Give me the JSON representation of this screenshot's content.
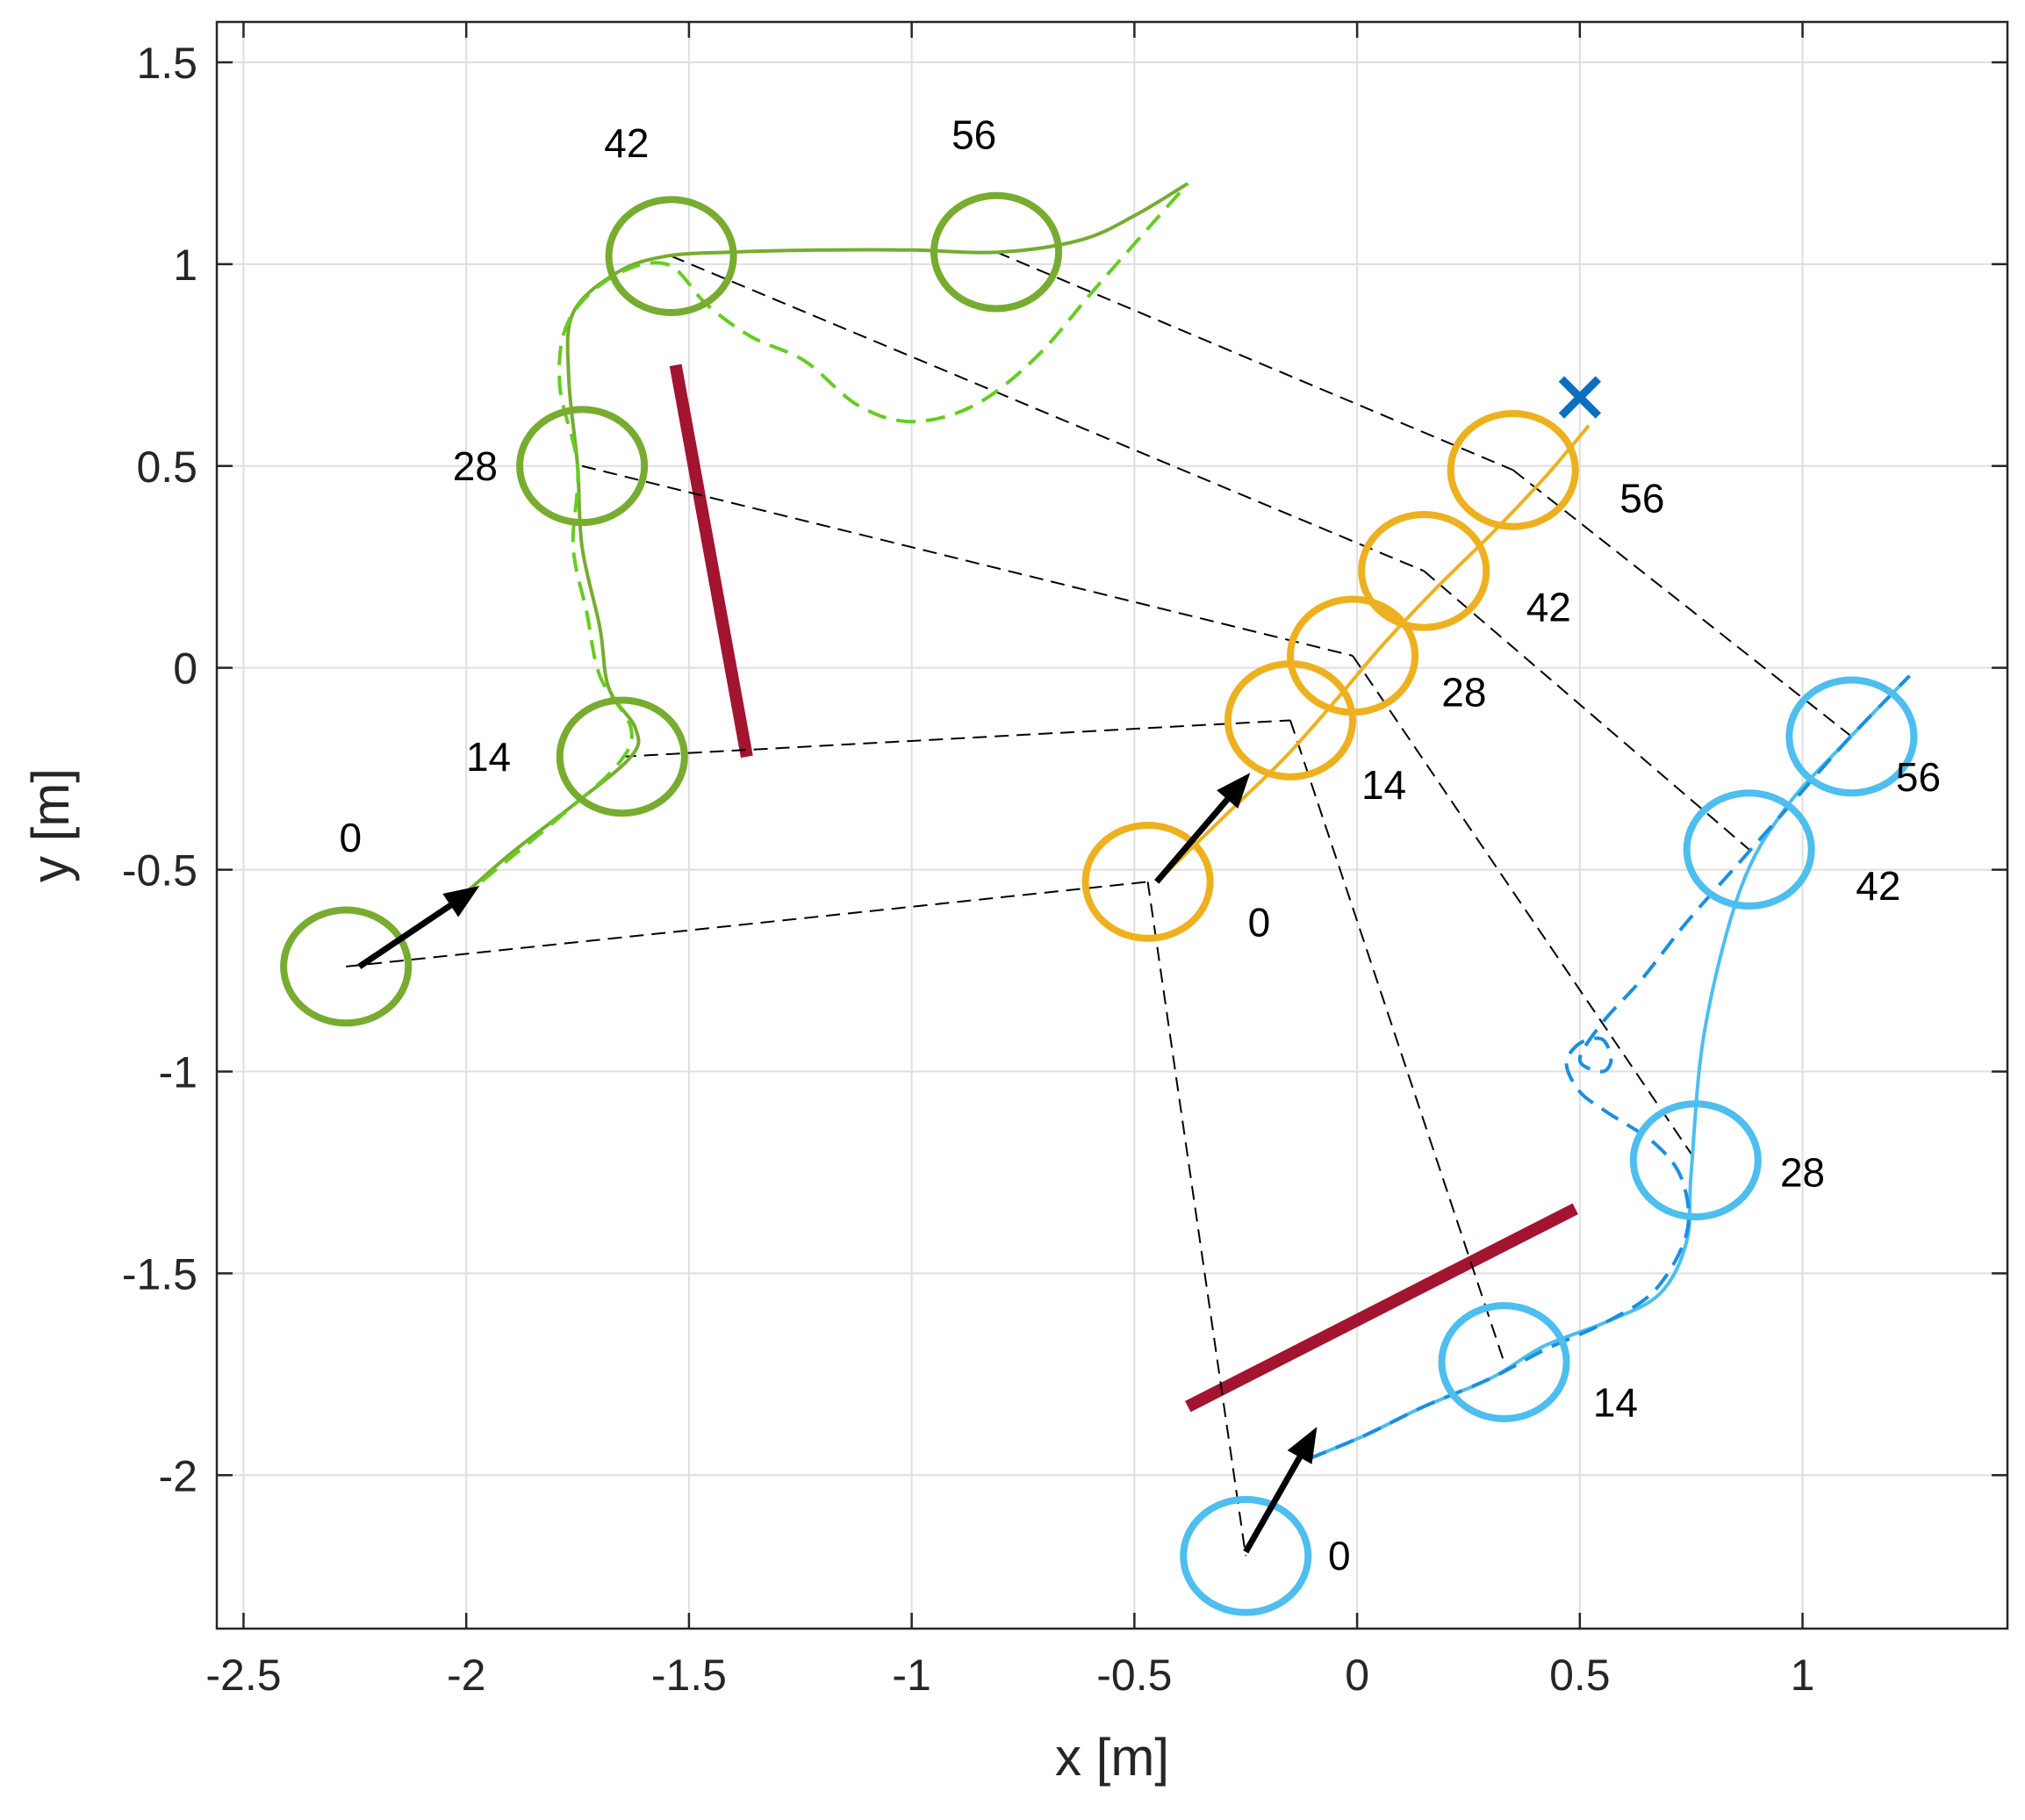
{
  "chart_data": {
    "type": "line",
    "title": "",
    "xlabel": "x [m]",
    "ylabel": "y [m]",
    "xlim": [
      -2.56,
      1.46
    ],
    "ylim": [
      -2.38,
      1.6
    ],
    "grid": true,
    "xticks": [
      -2.5,
      -2,
      -1.5,
      -1,
      -0.5,
      0,
      0.5,
      1
    ],
    "yticks": [
      -2,
      -1.5,
      -1,
      -0.5,
      0,
      0.5,
      1,
      1.5
    ],
    "xtick_labels": [
      "-2.5",
      "-2",
      "-1.5",
      "-1",
      "-0.5",
      "0",
      "0.5",
      "1"
    ],
    "ytick_labels": [
      "-2",
      "-1.5",
      "-1",
      "-0.5",
      "0",
      "0.5",
      "1",
      "1.5"
    ],
    "robot_radius": 0.14,
    "colors": {
      "green_robot": "#77ac30",
      "green_reference": "#66cc22",
      "orange_robot": "#edb120",
      "blue_robot": "#4dbeee",
      "blue_reference": "#1a8fe0",
      "obstacle": "#a2142f",
      "goal_marker": "#0b6fbf",
      "connector": "#000000",
      "arrow": "#000000"
    },
    "series": [
      {
        "name": "green robot trajectory",
        "color_key": "green_robot",
        "style": "solid",
        "points": [
          [
            -2.24,
            -0.74
          ],
          [
            -2.05,
            -0.6
          ],
          [
            -1.9,
            -0.46
          ],
          [
            -1.76,
            -0.34
          ],
          [
            -1.63,
            -0.22
          ],
          [
            -1.62,
            -0.15
          ],
          [
            -1.68,
            -0.05
          ],
          [
            -1.7,
            0.1
          ],
          [
            -1.74,
            0.3
          ],
          [
            -1.75,
            0.5
          ],
          [
            -1.77,
            0.72
          ],
          [
            -1.76,
            0.88
          ],
          [
            -1.66,
            0.98
          ],
          [
            -1.55,
            1.02
          ],
          [
            -1.4,
            1.03
          ],
          [
            -1.2,
            1.035
          ],
          [
            -1.0,
            1.035
          ],
          [
            -0.8,
            1.03
          ],
          [
            -0.62,
            1.06
          ],
          [
            -0.5,
            1.12
          ],
          [
            -0.38,
            1.2
          ]
        ]
      },
      {
        "name": "green reference path",
        "color_key": "green_reference",
        "style": "dashed",
        "points": [
          [
            -2.24,
            -0.74
          ],
          [
            -2.06,
            -0.61
          ],
          [
            -1.9,
            -0.47
          ],
          [
            -1.78,
            -0.36
          ],
          [
            -1.66,
            -0.24
          ],
          [
            -1.63,
            -0.15
          ],
          [
            -1.7,
            -0.02
          ],
          [
            -1.73,
            0.14
          ],
          [
            -1.76,
            0.3
          ],
          [
            -1.75,
            0.5
          ],
          [
            -1.79,
            0.7
          ],
          [
            -1.77,
            0.86
          ],
          [
            -1.67,
            0.97
          ],
          [
            -1.55,
            1.0
          ],
          [
            -1.46,
            0.9
          ],
          [
            -1.36,
            0.82
          ],
          [
            -1.24,
            0.76
          ],
          [
            -1.12,
            0.65
          ],
          [
            -1.0,
            0.61
          ],
          [
            -0.86,
            0.65
          ],
          [
            -0.72,
            0.77
          ],
          [
            -0.58,
            0.95
          ],
          [
            -0.38,
            1.2
          ]
        ]
      },
      {
        "name": "orange robot trajectory",
        "color_key": "orange_robot",
        "style": "solid",
        "points": [
          [
            -0.45,
            -0.53
          ],
          [
            -0.3,
            -0.37
          ],
          [
            -0.16,
            -0.22
          ],
          [
            -0.04,
            -0.07
          ],
          [
            0.06,
            0.06
          ],
          [
            0.18,
            0.2
          ],
          [
            0.3,
            0.33
          ],
          [
            0.42,
            0.47
          ],
          [
            0.52,
            0.6
          ]
        ]
      },
      {
        "name": "blue robot trajectory",
        "color_key": "blue_robot",
        "style": "solid",
        "points": [
          [
            -0.11,
            -1.96
          ],
          [
            0.02,
            -1.9
          ],
          [
            0.15,
            -1.83
          ],
          [
            0.3,
            -1.76
          ],
          [
            0.42,
            -1.68
          ],
          [
            0.56,
            -1.62
          ],
          [
            0.68,
            -1.55
          ],
          [
            0.74,
            -1.42
          ],
          [
            0.75,
            -1.25
          ],
          [
            0.78,
            -0.9
          ],
          [
            0.86,
            -0.55
          ],
          [
            0.96,
            -0.35
          ],
          [
            1.1,
            -0.18
          ],
          [
            1.24,
            -0.02
          ]
        ]
      },
      {
        "name": "blue reference path",
        "color_key": "blue_reference",
        "style": "dashed",
        "points": [
          [
            -0.11,
            -1.96
          ],
          [
            0.02,
            -1.9
          ],
          [
            0.15,
            -1.83
          ],
          [
            0.3,
            -1.76
          ],
          [
            0.42,
            -1.69
          ],
          [
            0.56,
            -1.62
          ],
          [
            0.67,
            -1.54
          ],
          [
            0.74,
            -1.4
          ],
          [
            0.73,
            -1.27
          ],
          [
            0.67,
            -1.18
          ],
          [
            0.56,
            -1.1
          ],
          [
            0.5,
            -1.05
          ],
          [
            0.47,
            -0.98
          ],
          [
            0.5,
            -0.93
          ],
          [
            0.55,
            -0.92
          ],
          [
            0.57,
            -0.97
          ],
          [
            0.55,
            -1.0
          ],
          [
            0.5,
            -0.97
          ],
          [
            0.55,
            -0.88
          ],
          [
            0.64,
            -0.77
          ],
          [
            0.74,
            -0.63
          ],
          [
            0.86,
            -0.48
          ],
          [
            0.98,
            -0.33
          ],
          [
            1.1,
            -0.18
          ],
          [
            1.24,
            -0.02
          ]
        ]
      }
    ],
    "robots": [
      {
        "name": "green",
        "color_key": "green_robot",
        "positions": [
          [
            -2.27,
            -0.74
          ],
          [
            -1.65,
            -0.22
          ],
          [
            -1.74,
            0.5
          ],
          [
            -1.54,
            1.02
          ],
          [
            -0.81,
            1.03
          ]
        ]
      },
      {
        "name": "orange",
        "color_key": "orange_robot",
        "positions": [
          [
            -0.47,
            -0.53
          ],
          [
            -0.15,
            -0.13
          ],
          [
            -0.01,
            0.03
          ],
          [
            0.15,
            0.24
          ],
          [
            0.35,
            0.49
          ]
        ]
      },
      {
        "name": "blue",
        "color_key": "blue_robot",
        "positions": [
          [
            -0.25,
            -2.2
          ],
          [
            0.33,
            -1.72
          ],
          [
            0.76,
            -1.22
          ],
          [
            0.88,
            -0.45
          ],
          [
            1.11,
            -0.17
          ]
        ]
      }
    ],
    "time_labels": [
      {
        "text": "0",
        "x": -2.26,
        "y": -0.42
      },
      {
        "text": "14",
        "x": -1.95,
        "y": -0.22
      },
      {
        "text": "28",
        "x": -1.98,
        "y": 0.5
      },
      {
        "text": "42",
        "x": -1.64,
        "y": 1.3
      },
      {
        "text": "56",
        "x": -0.86,
        "y": 1.32
      },
      {
        "text": "0",
        "x": -0.22,
        "y": -0.63
      },
      {
        "text": "14",
        "x": 0.06,
        "y": -0.29
      },
      {
        "text": "28",
        "x": 0.24,
        "y": -0.06
      },
      {
        "text": "42",
        "x": 0.43,
        "y": 0.15
      },
      {
        "text": "56",
        "x": 0.64,
        "y": 0.42
      },
      {
        "text": "0",
        "x": -0.04,
        "y": -2.2
      },
      {
        "text": "14",
        "x": 0.58,
        "y": -1.82
      },
      {
        "text": "28",
        "x": 1.0,
        "y": -1.25
      },
      {
        "text": "42",
        "x": 1.17,
        "y": -0.54
      },
      {
        "text": "56",
        "x": 1.26,
        "y": -0.27
      }
    ],
    "connectors": [
      [
        [
          -2.27,
          -0.74
        ],
        [
          -0.47,
          -0.53
        ]
      ],
      [
        [
          -0.47,
          -0.53
        ],
        [
          -0.25,
          -2.2
        ]
      ],
      [
        [
          -1.65,
          -0.22
        ],
        [
          -0.15,
          -0.13
        ]
      ],
      [
        [
          -0.15,
          -0.13
        ],
        [
          0.33,
          -1.72
        ]
      ],
      [
        [
          -1.74,
          0.5
        ],
        [
          -0.01,
          0.03
        ]
      ],
      [
        [
          -0.01,
          0.03
        ],
        [
          0.76,
          -1.22
        ]
      ],
      [
        [
          -1.54,
          1.02
        ],
        [
          0.15,
          0.24
        ]
      ],
      [
        [
          0.15,
          0.24
        ],
        [
          0.88,
          -0.45
        ]
      ],
      [
        [
          -0.81,
          1.03
        ],
        [
          0.35,
          0.49
        ]
      ],
      [
        [
          0.35,
          0.49
        ],
        [
          1.11,
          -0.17
        ]
      ]
    ],
    "arrows": [
      [
        [
          -2.24,
          -0.74
        ],
        [
          -1.97,
          -0.54
        ]
      ],
      [
        [
          -0.45,
          -0.53
        ],
        [
          -0.24,
          -0.26
        ]
      ],
      [
        [
          -0.25,
          -2.19
        ],
        [
          -0.09,
          -1.88
        ]
      ]
    ],
    "obstacles": [
      [
        [
          -1.53,
          0.75
        ],
        [
          -1.37,
          -0.22
        ]
      ],
      [
        [
          -0.38,
          -1.83
        ],
        [
          0.49,
          -1.34
        ]
      ]
    ],
    "goal": {
      "x": 0.5,
      "y": 0.67
    }
  }
}
